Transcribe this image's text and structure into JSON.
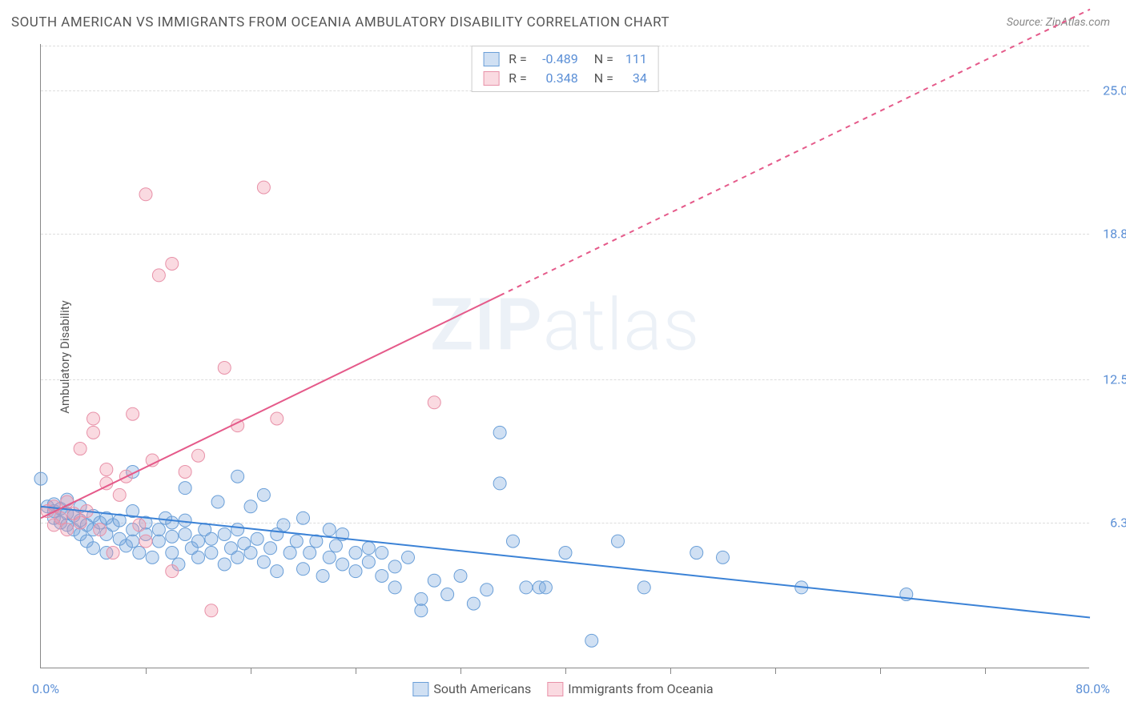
{
  "title": "SOUTH AMERICAN VS IMMIGRANTS FROM OCEANIA AMBULATORY DISABILITY CORRELATION CHART",
  "source_prefix": "Source: ",
  "source_name": "ZipAtlas.com",
  "y_axis_label": "Ambulatory Disability",
  "watermark_bold": "ZIP",
  "watermark_light": "atlas",
  "chart": {
    "type": "scatter",
    "xlim": [
      0,
      80
    ],
    "ylim": [
      0,
      27
    ],
    "x_min_label": "0.0%",
    "x_max_label": "80.0%",
    "y_ticks": [
      {
        "value": 6.3,
        "label": "6.3%"
      },
      {
        "value": 12.5,
        "label": "12.5%"
      },
      {
        "value": 18.8,
        "label": "18.8%"
      },
      {
        "value": 25.0,
        "label": "25.0%"
      }
    ],
    "x_ticks": [
      8,
      16,
      24,
      32,
      40,
      48,
      56,
      64,
      72
    ],
    "background_color": "#ffffff",
    "grid_color": "#dddddd",
    "axis_color": "#888888",
    "tick_label_color": "#5b8fd6",
    "marker_radius": 8,
    "marker_stroke_width": 1,
    "series": [
      {
        "name": "South Americans",
        "fill": "rgba(120,165,220,0.35)",
        "stroke": "#6a9fd8",
        "r_value": "-0.489",
        "n_value": "111",
        "trend": {
          "x1": 0,
          "y1": 7.0,
          "x2": 80,
          "y2": 2.2,
          "solid_until_x": 80,
          "color": "#3b82d6",
          "width": 2
        },
        "points": [
          [
            0,
            8.2
          ],
          [
            0.5,
            7.0
          ],
          [
            1,
            6.8
          ],
          [
            1,
            6.5
          ],
          [
            1,
            7.1
          ],
          [
            1.5,
            6.3
          ],
          [
            1.5,
            6.9
          ],
          [
            2,
            6.2
          ],
          [
            2,
            6.7
          ],
          [
            2,
            7.3
          ],
          [
            2.5,
            6.0
          ],
          [
            2.5,
            6.6
          ],
          [
            3,
            5.8
          ],
          [
            3,
            6.4
          ],
          [
            3,
            7.0
          ],
          [
            3.5,
            5.5
          ],
          [
            3.5,
            6.2
          ],
          [
            4,
            6.0
          ],
          [
            4,
            6.6
          ],
          [
            4,
            5.2
          ],
          [
            4.5,
            6.3
          ],
          [
            5,
            5.8
          ],
          [
            5,
            6.5
          ],
          [
            5,
            5.0
          ],
          [
            5.5,
            6.2
          ],
          [
            6,
            5.6
          ],
          [
            6,
            6.4
          ],
          [
            6.5,
            5.3
          ],
          [
            7,
            6.0
          ],
          [
            7,
            5.5
          ],
          [
            7,
            6.8
          ],
          [
            7.5,
            5.0
          ],
          [
            8,
            5.8
          ],
          [
            8,
            6.3
          ],
          [
            8.5,
            4.8
          ],
          [
            9,
            5.5
          ],
          [
            9,
            6.0
          ],
          [
            9.5,
            6.5
          ],
          [
            10,
            5.0
          ],
          [
            10,
            5.7
          ],
          [
            10,
            6.3
          ],
          [
            10.5,
            4.5
          ],
          [
            11,
            5.8
          ],
          [
            11,
            6.4
          ],
          [
            11.5,
            5.2
          ],
          [
            12,
            4.8
          ],
          [
            12,
            5.5
          ],
          [
            12.5,
            6.0
          ],
          [
            13,
            5.0
          ],
          [
            13,
            5.6
          ],
          [
            13.5,
            7.2
          ],
          [
            14,
            4.5
          ],
          [
            14,
            5.8
          ],
          [
            14.5,
            5.2
          ],
          [
            15,
            6.0
          ],
          [
            15,
            4.8
          ],
          [
            15.5,
            5.4
          ],
          [
            16,
            7.0
          ],
          [
            16,
            5.0
          ],
          [
            16.5,
            5.6
          ],
          [
            17,
            7.5
          ],
          [
            17,
            4.6
          ],
          [
            17.5,
            5.2
          ],
          [
            18,
            5.8
          ],
          [
            18,
            4.2
          ],
          [
            18.5,
            6.2
          ],
          [
            19,
            5.0
          ],
          [
            19.5,
            5.5
          ],
          [
            20,
            4.3
          ],
          [
            20,
            6.5
          ],
          [
            20.5,
            5.0
          ],
          [
            21,
            5.5
          ],
          [
            21.5,
            4.0
          ],
          [
            22,
            4.8
          ],
          [
            22,
            6.0
          ],
          [
            22.5,
            5.3
          ],
          [
            23,
            4.5
          ],
          [
            23,
            5.8
          ],
          [
            24,
            5.0
          ],
          [
            24,
            4.2
          ],
          [
            25,
            5.2
          ],
          [
            25,
            4.6
          ],
          [
            26,
            4.0
          ],
          [
            26,
            5.0
          ],
          [
            27,
            4.4
          ],
          [
            27,
            3.5
          ],
          [
            28,
            4.8
          ],
          [
            29,
            3.0
          ],
          [
            29,
            2.5
          ],
          [
            30,
            3.8
          ],
          [
            31,
            3.2
          ],
          [
            32,
            4.0
          ],
          [
            33,
            2.8
          ],
          [
            34,
            3.4
          ],
          [
            35,
            8.0
          ],
          [
            35,
            10.2
          ],
          [
            36,
            5.5
          ],
          [
            37,
            3.5
          ],
          [
            38,
            3.5
          ],
          [
            38.5,
            3.5
          ],
          [
            40,
            5.0
          ],
          [
            42,
            1.2
          ],
          [
            44,
            5.5
          ],
          [
            46,
            3.5
          ],
          [
            50,
            5.0
          ],
          [
            52,
            4.8
          ],
          [
            58,
            3.5
          ],
          [
            66,
            3.2
          ],
          [
            7,
            8.5
          ],
          [
            11,
            7.8
          ],
          [
            15,
            8.3
          ]
        ]
      },
      {
        "name": "Immigrants from Oceania",
        "fill": "rgba(240,150,170,0.35)",
        "stroke": "#e891a8",
        "r_value": "0.348",
        "n_value": "34",
        "trend": {
          "x1": 0,
          "y1": 6.5,
          "x2": 80,
          "y2": 28.5,
          "solid_until_x": 35,
          "color": "#e55a8a",
          "width": 2
        },
        "points": [
          [
            0.5,
            6.8
          ],
          [
            1,
            6.2
          ],
          [
            1,
            7.0
          ],
          [
            1.5,
            6.5
          ],
          [
            2,
            6.0
          ],
          [
            2,
            7.2
          ],
          [
            2.5,
            6.7
          ],
          [
            3,
            6.3
          ],
          [
            3,
            9.5
          ],
          [
            3.5,
            6.8
          ],
          [
            4,
            10.2
          ],
          [
            4,
            10.8
          ],
          [
            4.5,
            6.0
          ],
          [
            5,
            8.0
          ],
          [
            5,
            8.6
          ],
          [
            5.5,
            5.0
          ],
          [
            6,
            7.5
          ],
          [
            6.5,
            8.3
          ],
          [
            7,
            11.0
          ],
          [
            7.5,
            6.2
          ],
          [
            8,
            20.5
          ],
          [
            8,
            5.5
          ],
          [
            8.5,
            9.0
          ],
          [
            9,
            17.0
          ],
          [
            10,
            4.2
          ],
          [
            10,
            17.5
          ],
          [
            11,
            8.5
          ],
          [
            12,
            9.2
          ],
          [
            13,
            2.5
          ],
          [
            14,
            13.0
          ],
          [
            15,
            10.5
          ],
          [
            17,
            20.8
          ],
          [
            18,
            10.8
          ],
          [
            30,
            11.5
          ]
        ]
      }
    ],
    "stats_box": {
      "r_label": "R =",
      "n_label": "N ="
    },
    "legend_labels": [
      "South Americans",
      "Immigrants from Oceania"
    ]
  }
}
